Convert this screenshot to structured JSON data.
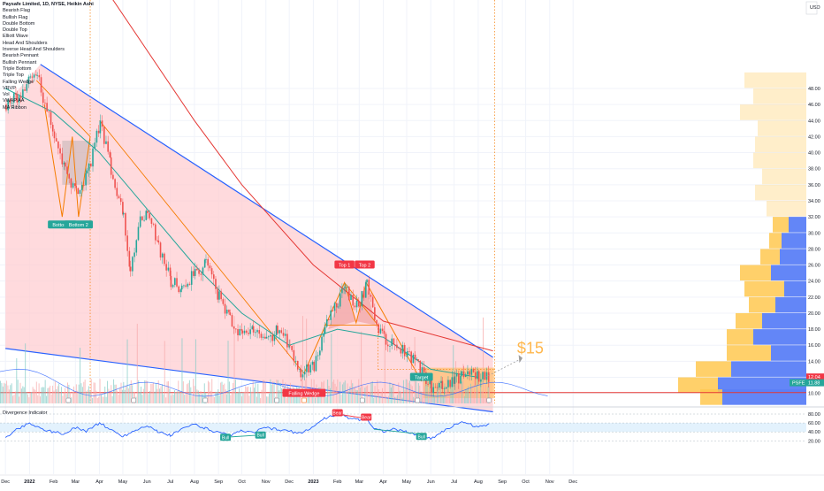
{
  "header": {
    "title": "Paysafe Limited, 1D, NYSE, Heikin Ashi",
    "currency": "USD"
  },
  "legend": [
    "Bearish Flag",
    "Bullish Flag",
    "Double Bottom",
    "Double Top",
    "Elliott Wave",
    "Head And Shoulders",
    "Inverse Head And Shoulders",
    "Bearish Pennant",
    "Bullish Pennant",
    "Triple Bottom",
    "Triple Top",
    "Falling Wedge",
    "VRVP",
    "Vol",
    "VWAP AA",
    "MA Ribbon"
  ],
  "colors": {
    "wedge_line": "#2962ff",
    "wedge_fill": "#ffcdd2",
    "ma_red": "#e53935",
    "ma_green": "#26a69a",
    "pattern_orange": "#f57c00",
    "candle_up": "#26a69a",
    "candle_down": "#ef5350",
    "vp_blue": "#5b7ff7",
    "vp_yellow": "#ffc850",
    "rsi_line": "#2962ff"
  },
  "chart_data": [
    {
      "type": "candlestick",
      "x_ticks": [
        "Dec",
        "2022",
        "Feb",
        "Mar",
        "Apr",
        "May",
        "Jun",
        "Jul",
        "Aug",
        "Sep",
        "Oct",
        "Nov",
        "Dec",
        "2023",
        "Feb",
        "Mar",
        "Apr",
        "May",
        "Jun",
        "Jul",
        "Aug",
        "Sep",
        "Oct",
        "Nov",
        "Dec"
      ],
      "y_ticks": [
        "48.00",
        "46.00",
        "44.00",
        "42.00",
        "40.00",
        "38.00",
        "36.00",
        "34.00",
        "32.00",
        "30.00",
        "28.00",
        "26.00",
        "24.00",
        "22.00",
        "20.00",
        "18.00",
        "16.00",
        "14.00",
        "12.00",
        "10.00"
      ],
      "ylim": [
        8.2,
        52
      ],
      "price_path": [
        [
          "2021-12-01",
          46
        ],
        [
          "2021-12-15",
          47
        ],
        [
          "2022-01-01",
          49
        ],
        [
          "2022-01-10",
          50
        ],
        [
          "2022-01-20",
          46
        ],
        [
          "2022-02-01",
          42
        ],
        [
          "2022-02-15",
          38
        ],
        [
          "2022-03-01",
          35
        ],
        [
          "2022-03-15",
          37
        ],
        [
          "2022-04-01",
          44
        ],
        [
          "2022-04-15",
          38
        ],
        [
          "2022-05-01",
          32
        ],
        [
          "2022-05-10",
          25
        ],
        [
          "2022-05-20",
          31
        ],
        [
          "2022-06-01",
          33
        ],
        [
          "2022-06-15",
          28
        ],
        [
          "2022-07-01",
          24
        ],
        [
          "2022-07-15",
          23
        ],
        [
          "2022-08-01",
          25
        ],
        [
          "2022-08-15",
          26
        ],
        [
          "2022-09-01",
          22
        ],
        [
          "2022-09-15",
          19
        ],
        [
          "2022-10-01",
          17
        ],
        [
          "2022-10-15",
          18
        ],
        [
          "2022-11-01",
          16.5
        ],
        [
          "2022-11-15",
          18
        ],
        [
          "2022-12-01",
          16
        ],
        [
          "2022-12-15",
          12.5
        ],
        [
          "2023-01-01",
          13.5
        ],
        [
          "2023-01-15",
          18
        ],
        [
          "2023-02-01",
          21.5
        ],
        [
          "2023-02-10",
          23.5
        ],
        [
          "2023-02-20",
          21
        ],
        [
          "2023-03-01",
          21.5
        ],
        [
          "2023-03-10",
          23.5
        ],
        [
          "2023-03-20",
          19
        ],
        [
          "2023-04-01",
          17
        ],
        [
          "2023-04-15",
          16
        ],
        [
          "2023-05-01",
          15
        ],
        [
          "2023-05-15",
          13.5
        ],
        [
          "2023-06-01",
          10.5
        ],
        [
          "2023-06-15",
          10.8
        ],
        [
          "2023-07-01",
          11.5
        ],
        [
          "2023-07-10",
          12.3
        ],
        [
          "2023-07-20",
          12.8
        ],
        [
          "2023-08-01",
          12.2
        ],
        [
          "2023-08-15",
          12
        ]
      ],
      "wedge_upper": [
        [
          "2022-01-15",
          51
        ],
        [
          "2023-08-20",
          14.5
        ]
      ],
      "wedge_lower": [
        [
          "2021-12-01",
          15.6
        ],
        [
          "2023-08-20",
          7.7
        ]
      ],
      "ma_red": [
        [
          "2022-02-01",
          70
        ],
        [
          "2022-08-01",
          44
        ],
        [
          "2022-10-01",
          36
        ],
        [
          "2023-01-01",
          26
        ],
        [
          "2023-04-01",
          19
        ],
        [
          "2023-08-20",
          15.3
        ]
      ],
      "ma_green": [
        [
          "2021-12-01",
          48
        ],
        [
          "2022-02-01",
          45
        ],
        [
          "2022-04-01",
          40
        ],
        [
          "2022-06-01",
          33
        ],
        [
          "2022-08-01",
          26
        ],
        [
          "2022-10-01",
          20
        ],
        [
          "2022-12-01",
          16
        ],
        [
          "2023-02-01",
          18
        ],
        [
          "2023-04-01",
          17
        ],
        [
          "2023-06-01",
          13
        ],
        [
          "2023-08-01",
          12
        ]
      ],
      "labels": [
        {
          "text": "Bottom 1",
          "date": "2022-02-12",
          "price": 31
        },
        {
          "text": "Bottom 2",
          "date": "2022-03-05",
          "price": 31
        },
        {
          "text": "Top 1",
          "date": "2023-02-10",
          "price": 26
        },
        {
          "text": "Top 2",
          "date": "2023-03-08",
          "price": 26
        },
        {
          "text": "Target",
          "date": "2023-05-20",
          "price": 12
        },
        {
          "text": "Falling Wedge",
          "date": "2022-12-20",
          "price": 10
        },
        {
          "text": "$15",
          "date": "2023-09-20",
          "price": 15
        }
      ],
      "price_tags": [
        {
          "text": "12.04",
          "price": 12.04,
          "color": "#f23645"
        },
        {
          "text": "PSFE",
          "price": 11.88,
          "color": "#26a69a"
        },
        {
          "text": "11.88",
          "price": 11.88,
          "color": "#26a69a"
        }
      ]
    },
    {
      "type": "line",
      "title": "Divergence Indicator",
      "y_ticks": [
        "80.00",
        "60.00",
        "40.00",
        "20.00"
      ],
      "ylim": [
        15,
        85
      ],
      "rsi_path": [
        [
          "2021-12-01",
          28
        ],
        [
          "2021-12-15",
          45
        ],
        [
          "2022-01-01",
          60
        ],
        [
          "2022-01-15",
          48
        ],
        [
          "2022-02-01",
          40
        ],
        [
          "2022-02-15",
          35
        ],
        [
          "2022-03-01",
          50
        ],
        [
          "2022-03-15",
          42
        ],
        [
          "2022-04-01",
          60
        ],
        [
          "2022-04-15",
          45
        ],
        [
          "2022-05-01",
          30
        ],
        [
          "2022-05-15",
          42
        ],
        [
          "2022-06-01",
          55
        ],
        [
          "2022-06-15",
          40
        ],
        [
          "2022-07-01",
          32
        ],
        [
          "2022-07-15",
          45
        ],
        [
          "2022-08-01",
          58
        ],
        [
          "2022-08-15",
          48
        ],
        [
          "2022-09-01",
          38
        ],
        [
          "2022-09-15",
          32
        ],
        [
          "2022-10-01",
          42
        ],
        [
          "2022-10-15",
          38
        ],
        [
          "2022-11-01",
          50
        ],
        [
          "2022-11-15",
          45
        ],
        [
          "2022-12-01",
          42
        ],
        [
          "2022-12-15",
          36
        ],
        [
          "2023-01-01",
          52
        ],
        [
          "2023-01-15",
          70
        ],
        [
          "2023-02-01",
          80
        ],
        [
          "2023-02-15",
          72
        ],
        [
          "2023-03-01",
          68
        ],
        [
          "2023-03-10",
          72
        ],
        [
          "2023-03-20",
          48
        ],
        [
          "2023-04-01",
          42
        ],
        [
          "2023-04-15",
          46
        ],
        [
          "2023-05-01",
          40
        ],
        [
          "2023-05-15",
          33
        ],
        [
          "2023-06-01",
          25
        ],
        [
          "2023-06-15",
          40
        ],
        [
          "2023-07-01",
          55
        ],
        [
          "2023-07-15",
          62
        ],
        [
          "2023-08-01",
          50
        ],
        [
          "2023-08-15",
          58
        ]
      ],
      "labels": [
        {
          "text": "Bull",
          "date": "2022-09-10",
          "value": 28,
          "kind": "bull"
        },
        {
          "text": "Bull",
          "date": "2022-10-25",
          "value": 33,
          "kind": "bull"
        },
        {
          "text": "Bear",
          "date": "2023-02-01",
          "value": 83,
          "kind": "bear"
        },
        {
          "text": "Bear",
          "date": "2023-03-10",
          "value": 73,
          "kind": "bear"
        },
        {
          "text": "Bull",
          "date": "2023-05-20",
          "value": 30,
          "kind": "bull"
        }
      ]
    }
  ]
}
